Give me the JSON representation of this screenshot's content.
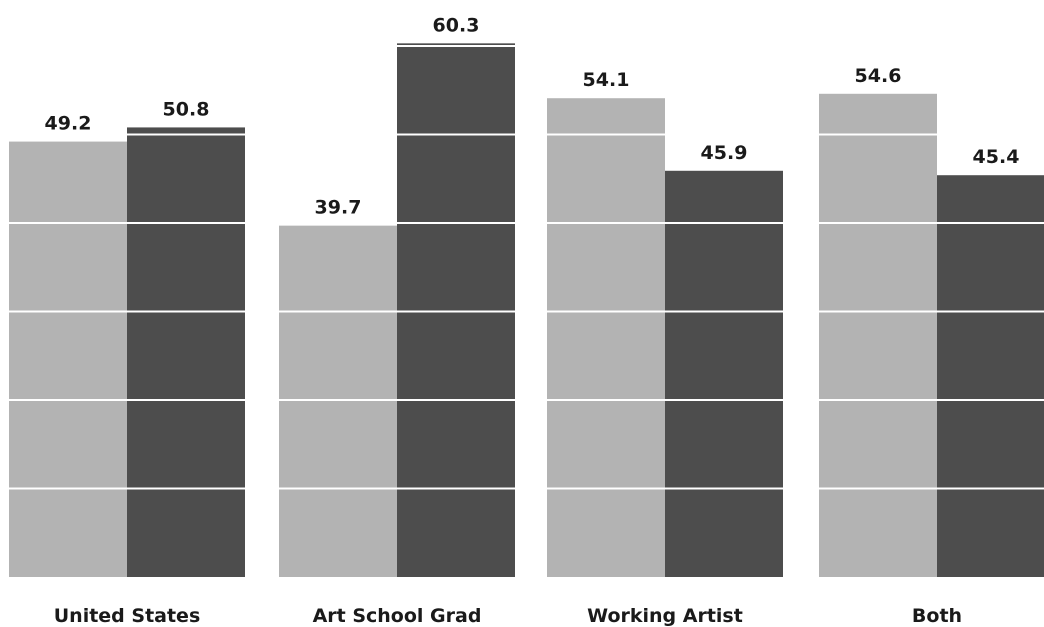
{
  "chart_data": {
    "type": "bar",
    "categories": [
      "United States",
      "Art School Grad",
      "Working Artist",
      "Both"
    ],
    "series": [
      {
        "values": [
          49.2,
          39.7,
          54.1,
          54.6
        ],
        "color": "#b3b3b3"
      },
      {
        "values": [
          50.8,
          60.3,
          45.9,
          45.4
        ],
        "color": "#4d4d4d"
      }
    ],
    "value_labels": [
      [
        "49.2",
        "39.7",
        "54.1",
        "54.6"
      ],
      [
        "50.8",
        "60.3",
        "45.9",
        "45.4"
      ]
    ],
    "ylim": [
      0,
      60
    ],
    "gridlines": [
      10,
      20,
      30,
      40,
      50,
      60
    ],
    "gridline_color": "#ffffff",
    "grid": true,
    "legend": false
  }
}
